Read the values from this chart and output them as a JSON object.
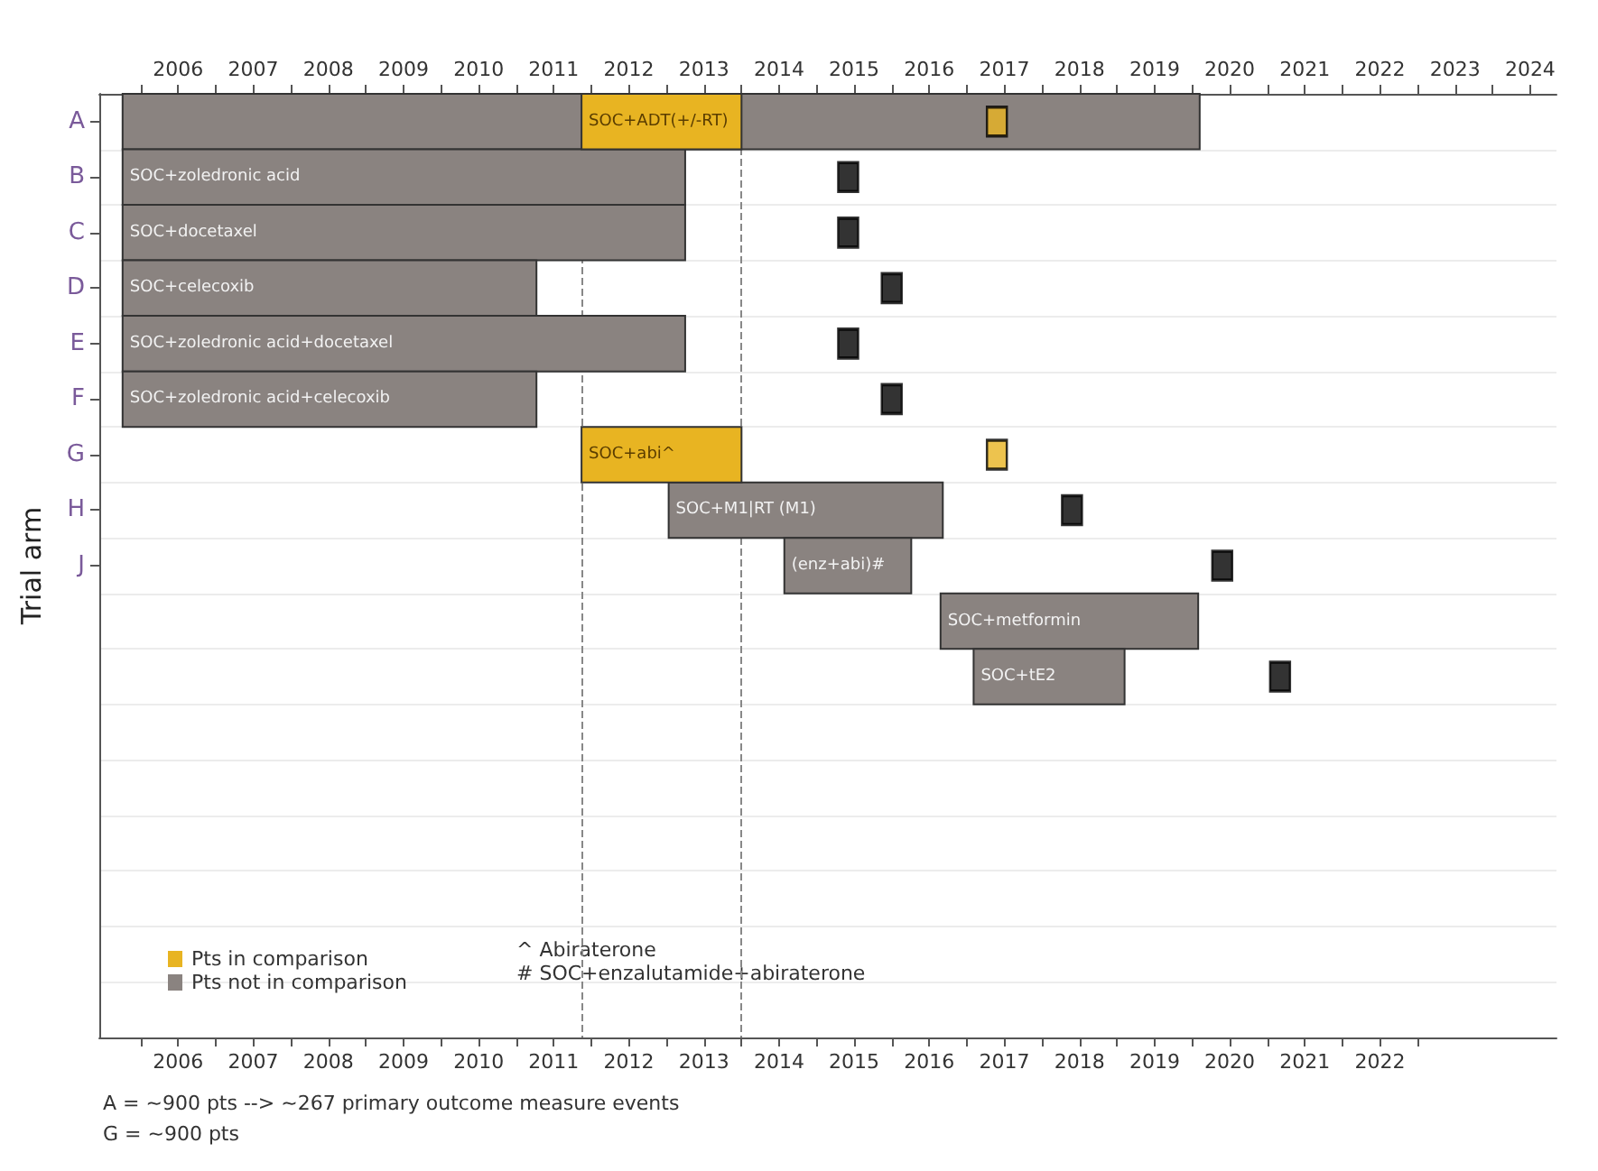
{
  "chart_data": {
    "type": "bar",
    "orientation": "horizontal",
    "ylabel": "Trial arm",
    "categories": [
      "A",
      "B",
      "C",
      "D",
      "E",
      "F",
      "G",
      "H",
      "J",
      null,
      null,
      null,
      null,
      null,
      null,
      null,
      null
    ],
    "series": [
      {
        "type": "bar",
        "name": "Pts in comparison",
        "color": "#e8b422",
        "base": [
          2011.87,
          null,
          null,
          null,
          null,
          null,
          2011.87,
          null,
          null,
          null,
          null,
          null,
          null,
          null,
          null,
          null,
          null
        ],
        "values": [
          2.13,
          null,
          null,
          null,
          null,
          null,
          2.13,
          null,
          null,
          null,
          null,
          null,
          null,
          null,
          null,
          null,
          null
        ],
        "value_labels": [
          "SOC+ADT(+/-RT)",
          null,
          null,
          null,
          null,
          null,
          "SOC+abi^",
          null,
          null,
          null,
          null,
          null,
          null,
          null,
          null,
          null,
          null
        ]
      },
      {
        "type": "bar",
        "name": "Pts not in comparison",
        "color": "#8a8380",
        "base": [
          2005.76,
          2005.76,
          2005.76,
          2005.76,
          2005.76,
          2005.76,
          null,
          2013.03,
          2014.57,
          2016.65,
          2017.09,
          null,
          null,
          null,
          null,
          null,
          null
        ],
        "values": [
          14.34,
          7.49,
          7.49,
          5.51,
          7.49,
          5.51,
          null,
          3.65,
          1.69,
          3.43,
          2.01,
          null,
          null,
          null,
          null,
          null,
          null
        ],
        "value_labels": [
          null,
          "SOC+zoledronic acid",
          "SOC+docetaxel",
          "SOC+celecoxib",
          "SOC+zoledronic acid+docetaxel",
          "SOC+zoledronic acid+celecoxib",
          null,
          "SOC+M1|RT (M1)",
          "(enz+abi)#",
          "SOC+metformin",
          "SOC+tE2",
          null,
          null,
          null,
          null,
          null,
          null
        ]
      },
      {
        "type": "scatter",
        "color": "#e8b422",
        "values": [
          2017.4,
          null,
          null,
          null,
          null,
          null,
          2017.4,
          null,
          null,
          null,
          null,
          null,
          null,
          null,
          null,
          null,
          null
        ]
      },
      {
        "type": "scatter",
        "color": "#000000",
        "values": [
          null,
          2015.42,
          2015.42,
          2016.0,
          2015.42,
          2016.0,
          null,
          2018.4,
          2020.4,
          null,
          2021.17,
          null,
          null,
          null,
          null,
          null,
          null
        ]
      }
    ],
    "marker": "square",
    "xlim": [
      2005.45,
      2024.85
    ],
    "xticks": [
      {
        "value": 2006,
        "label": null
      },
      {
        "value": 2006.5,
        "label": "2006"
      },
      {
        "value": 2007,
        "label": null
      },
      {
        "value": 2007.5,
        "label": "2007"
      },
      {
        "value": 2008,
        "label": null
      },
      {
        "value": 2008.5,
        "label": "2008"
      },
      {
        "value": 2009,
        "label": null
      },
      {
        "value": 2009.5,
        "label": "2009"
      },
      {
        "value": 2010,
        "label": null
      },
      {
        "value": 2010.5,
        "label": "2010"
      },
      {
        "value": 2011,
        "label": null
      },
      {
        "value": 2011.5,
        "label": "2011"
      },
      {
        "value": 2012,
        "label": null
      },
      {
        "value": 2012.5,
        "label": "2012"
      },
      {
        "value": 2013,
        "label": null
      },
      {
        "value": 2013.5,
        "label": "2013"
      },
      {
        "value": 2014,
        "label": null
      },
      {
        "value": 2014.5,
        "label": "2014"
      },
      {
        "value": 2015,
        "label": null
      },
      {
        "value": 2015.5,
        "label": "2015"
      },
      {
        "value": 2016,
        "label": null
      },
      {
        "value": 2016.5,
        "label": "2016"
      },
      {
        "value": 2017,
        "label": null
      },
      {
        "value": 2017.5,
        "label": "2017"
      },
      {
        "value": 2018,
        "label": null
      },
      {
        "value": 2018.5,
        "label": "2018"
      },
      {
        "value": 2019,
        "label": null
      },
      {
        "value": 2019.5,
        "label": "2019"
      },
      {
        "value": 2020,
        "label": null
      },
      {
        "value": 2020.5,
        "label": "2020"
      },
      {
        "value": 2021,
        "label": null
      },
      {
        "value": 2021.5,
        "label": "2021"
      },
      {
        "value": 2022,
        "label": null
      },
      {
        "value": 2022.5,
        "label": "2022"
      },
      {
        "value": 2023,
        "label": null
      }
    ],
    "x2lim": [
      2005.45,
      2024.85
    ],
    "x2ticks": [
      {
        "value": 2006,
        "label": null
      },
      {
        "value": 2006.5,
        "label": "2006"
      },
      {
        "value": 2007,
        "label": null
      },
      {
        "value": 2007.5,
        "label": "2007"
      },
      {
        "value": 2008,
        "label": null
      },
      {
        "value": 2008.5,
        "label": "2008"
      },
      {
        "value": 2009,
        "label": null
      },
      {
        "value": 2009.5,
        "label": "2009"
      },
      {
        "value": 2010,
        "label": null
      },
      {
        "value": 2010.5,
        "label": "2010"
      },
      {
        "value": 2011,
        "label": null
      },
      {
        "value": 2011.5,
        "label": "2011"
      },
      {
        "value": 2012,
        "label": null
      },
      {
        "value": 2012.5,
        "label": "2012"
      },
      {
        "value": 2013,
        "label": null
      },
      {
        "value": 2013.5,
        "label": "2013"
      },
      {
        "value": 2014,
        "label": null
      },
      {
        "value": 2014.5,
        "label": "2014"
      },
      {
        "value": 2015,
        "label": null
      },
      {
        "value": 2015.5,
        "label": "2015"
      },
      {
        "value": 2016,
        "label": null
      },
      {
        "value": 2016.5,
        "label": "2016"
      },
      {
        "value": 2017,
        "label": null
      },
      {
        "value": 2017.5,
        "label": "2017"
      },
      {
        "value": 2018,
        "label": null
      },
      {
        "value": 2018.5,
        "label": "2018"
      },
      {
        "value": 2019,
        "label": null
      },
      {
        "value": 2019.5,
        "label": "2019"
      },
      {
        "value": 2020,
        "label": null
      },
      {
        "value": 2020.5,
        "label": "2020"
      },
      {
        "value": 2021,
        "label": null
      },
      {
        "value": 2021.5,
        "label": "2021"
      },
      {
        "value": 2022,
        "label": null
      },
      {
        "value": 2022.5,
        "label": "2022"
      },
      {
        "value": 2023,
        "label": null
      },
      {
        "value": 2023.5,
        "label": "2023"
      },
      {
        "value": 2024,
        "label": null
      },
      {
        "value": 2024.5,
        "label": "2024"
      }
    ],
    "ref_lines": [
      {
        "axis": "x",
        "value": 2011.87,
        "color": "#888888",
        "line_style": "dashed"
      },
      {
        "axis": "x",
        "value": 2014.0,
        "color": "#888888",
        "line_style": "dashed"
      }
    ],
    "grid": "y",
    "legend": "bottom left",
    "annotations": [
      "^ Abiraterone",
      "# SOC+enzalutamide+abiraterone",
      "A = ~900 pts --> ~267 primary outcome measure events",
      "G = ~900 pts"
    ]
  }
}
